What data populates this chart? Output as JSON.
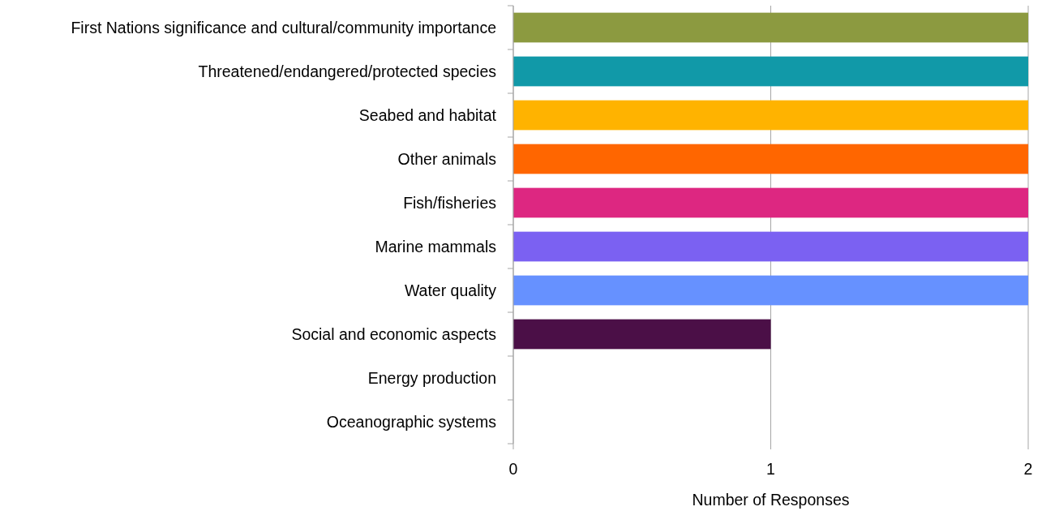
{
  "chart_data": {
    "type": "bar",
    "orientation": "horizontal",
    "xlabel": "Number of Responses",
    "categories": [
      "First Nations significance and cultural/community importance",
      "Threatened/endangered/protected species",
      "Seabed and habitat",
      "Other animals",
      "Fish/fisheries",
      "Marine mammals",
      "Water quality",
      "Social and economic aspects",
      "Energy production",
      "Oceanographic systems"
    ],
    "values": [
      2,
      2,
      2,
      2,
      2,
      2,
      2,
      1,
      0,
      0
    ],
    "colors": [
      "#8c9a40",
      "#1199a8",
      "#ffb300",
      "#ff6600",
      "#dd2781",
      "#7b61f2",
      "#6691ff",
      "#4b0f47",
      null,
      null
    ],
    "xlim": [
      0,
      2
    ],
    "xticks": [
      0,
      1,
      2
    ],
    "grid": "x"
  }
}
